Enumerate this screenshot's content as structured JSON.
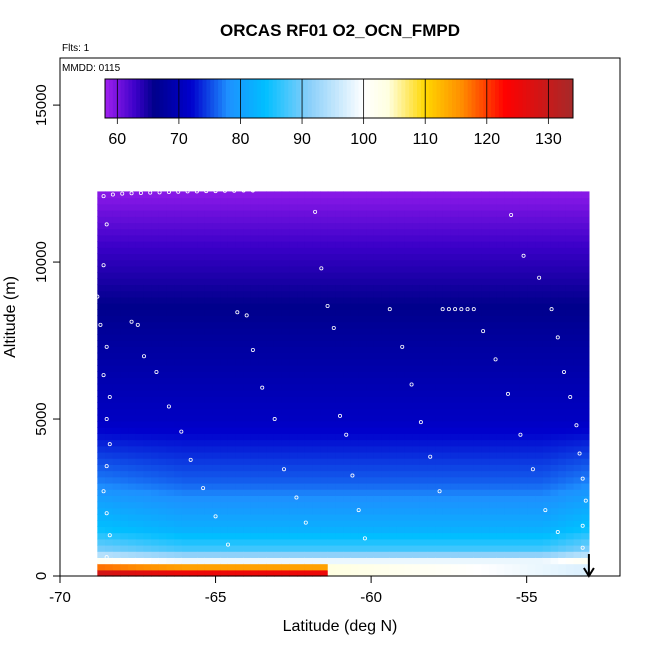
{
  "chart_data": {
    "type": "heatmap",
    "title": "ORCAS RF01 O2_OCN_FMPD",
    "xlabel": "Latitude (deg N)",
    "ylabel": "Altitude (m)",
    "flts_label": "Flts: 1",
    "mmdd_label": "MMDD: 0115",
    "xlim": [
      -70,
      -52
    ],
    "ylim": [
      0,
      16500
    ],
    "x_ticks": [
      {
        "value": -70,
        "label": "-70"
      },
      {
        "value": -65,
        "label": "-65"
      },
      {
        "value": -60,
        "label": "-60"
      },
      {
        "value": -55,
        "label": "-55"
      }
    ],
    "y_ticks": [
      {
        "value": 0,
        "label": "0"
      },
      {
        "value": 5000,
        "label": "5000"
      },
      {
        "value": 10000,
        "label": "10000"
      },
      {
        "value": 15000,
        "label": "15000"
      }
    ],
    "colorbar": {
      "range": [
        58,
        134
      ],
      "ticks": [
        {
          "value": 60,
          "label": "60"
        },
        {
          "value": 70,
          "label": "70"
        },
        {
          "value": 80,
          "label": "80"
        },
        {
          "value": 90,
          "label": "90"
        },
        {
          "value": 100,
          "label": "100"
        },
        {
          "value": 110,
          "label": "110"
        },
        {
          "value": 120,
          "label": "120"
        },
        {
          "value": 130,
          "label": "130"
        }
      ],
      "stops": [
        {
          "value": 58,
          "color": "#a020f0"
        },
        {
          "value": 63,
          "color": "#3a00c8"
        },
        {
          "value": 66,
          "color": "#00008b"
        },
        {
          "value": 72,
          "color": "#0000cd"
        },
        {
          "value": 78,
          "color": "#1e90ff"
        },
        {
          "value": 84,
          "color": "#00bfff"
        },
        {
          "value": 91,
          "color": "#87cefa"
        },
        {
          "value": 100,
          "color": "#ffffff"
        },
        {
          "value": 104,
          "color": "#ffffe0"
        },
        {
          "value": 110,
          "color": "#ffd700"
        },
        {
          "value": 116,
          "color": "#ff8c00"
        },
        {
          "value": 123,
          "color": "#ff0000"
        },
        {
          "value": 134,
          "color": "#a52a2a"
        }
      ]
    },
    "field_extent": {
      "lat_min": -68.8,
      "lat_max": -53.0,
      "alt_min": 0,
      "alt_max": 12250
    },
    "profile_model": {
      "description": "O2_OCN_FMPD value vs altitude; low near top, high near surface",
      "altitude_values": [
        {
          "alt": 0,
          "value": 130
        },
        {
          "alt": 250,
          "value": 118
        },
        {
          "alt": 500,
          "value": 98
        },
        {
          "alt": 800,
          "value": 88
        },
        {
          "alt": 1500,
          "value": 82
        },
        {
          "alt": 3000,
          "value": 76
        },
        {
          "alt": 5000,
          "value": 71
        },
        {
          "alt": 8000,
          "value": 67
        },
        {
          "alt": 10500,
          "value": 63
        },
        {
          "alt": 12250,
          "value": 59
        }
      ]
    },
    "flight_track_note": "Aircraft profile track drawn as small white open circles",
    "arrow": {
      "lat": -53.0,
      "alt_top": 700,
      "alt_bottom": 0,
      "direction": "down"
    },
    "track_points": [
      [
        -68.6,
        12100
      ],
      [
        -68.3,
        12150
      ],
      [
        -68.0,
        12180
      ],
      [
        -67.7,
        12190
      ],
      [
        -67.4,
        12200
      ],
      [
        -67.1,
        12210
      ],
      [
        -66.8,
        12220
      ],
      [
        -66.5,
        12230
      ],
      [
        -66.2,
        12240
      ],
      [
        -65.9,
        12250
      ],
      [
        -65.6,
        12250
      ],
      [
        -65.3,
        12260
      ],
      [
        -65.0,
        12260
      ],
      [
        -64.7,
        12270
      ],
      [
        -64.4,
        12270
      ],
      [
        -64.1,
        12280
      ],
      [
        -63.8,
        12280
      ],
      [
        -60.8,
        12400
      ],
      [
        -60.5,
        12410
      ],
      [
        -60.2,
        12420
      ],
      [
        -59.9,
        12420
      ],
      [
        -59.6,
        12430
      ],
      [
        -59.3,
        12430
      ],
      [
        -59.0,
        12440
      ],
      [
        -58.7,
        12440
      ],
      [
        -58.4,
        12450
      ],
      [
        -58.1,
        12450
      ],
      [
        -57.8,
        12460
      ],
      [
        -57.5,
        12460
      ],
      [
        -57.2,
        12470
      ],
      [
        -56.9,
        12470
      ],
      [
        -56.6,
        12480
      ],
      [
        -68.5,
        11200
      ],
      [
        -68.6,
        9900
      ],
      [
        -68.8,
        8900
      ],
      [
        -68.7,
        8000
      ],
      [
        -68.5,
        7300
      ],
      [
        -68.6,
        6400
      ],
      [
        -68.4,
        5700
      ],
      [
        -68.5,
        5000
      ],
      [
        -68.4,
        4200
      ],
      [
        -68.5,
        3500
      ],
      [
        -68.6,
        2700
      ],
      [
        -68.5,
        2000
      ],
      [
        -68.4,
        1300
      ],
      [
        -68.5,
        600
      ],
      [
        -67.7,
        8100
      ],
      [
        -67.5,
        8000
      ],
      [
        -67.3,
        7000
      ],
      [
        -66.9,
        6500
      ],
      [
        -66.5,
        5400
      ],
      [
        -66.1,
        4600
      ],
      [
        -65.8,
        3700
      ],
      [
        -65.4,
        2800
      ],
      [
        -65.0,
        1900
      ],
      [
        -64.6,
        1000
      ],
      [
        -64.3,
        8400
      ],
      [
        -64.0,
        8300
      ],
      [
        -63.8,
        7200
      ],
      [
        -63.5,
        6000
      ],
      [
        -63.1,
        5000
      ],
      [
        -62.8,
        3400
      ],
      [
        -62.4,
        2500
      ],
      [
        -62.1,
        1700
      ],
      [
        -61.8,
        11600
      ],
      [
        -61.6,
        9800
      ],
      [
        -61.4,
        8600
      ],
      [
        -61.2,
        7900
      ],
      [
        -61.0,
        5100
      ],
      [
        -60.8,
        4500
      ],
      [
        -60.6,
        3200
      ],
      [
        -60.4,
        2100
      ],
      [
        -60.2,
        1200
      ],
      [
        -59.4,
        8500
      ],
      [
        -59.0,
        7300
      ],
      [
        -58.7,
        6100
      ],
      [
        -58.4,
        4900
      ],
      [
        -58.1,
        3800
      ],
      [
        -57.8,
        2700
      ],
      [
        -57.7,
        8500
      ],
      [
        -57.5,
        8500
      ],
      [
        -57.3,
        8500
      ],
      [
        -57.1,
        8500
      ],
      [
        -56.9,
        8500
      ],
      [
        -56.7,
        8500
      ],
      [
        -56.4,
        7800
      ],
      [
        -56.0,
        6900
      ],
      [
        -55.6,
        5800
      ],
      [
        -55.2,
        4500
      ],
      [
        -54.8,
        3400
      ],
      [
        -54.4,
        2100
      ],
      [
        -54.0,
        1400
      ],
      [
        -55.5,
        11500
      ],
      [
        -55.1,
        10200
      ],
      [
        -54.6,
        9500
      ],
      [
        -54.2,
        8500
      ],
      [
        -54.0,
        7600
      ],
      [
        -53.8,
        6500
      ],
      [
        -53.6,
        5700
      ],
      [
        -53.4,
        4800
      ],
      [
        -53.3,
        3900
      ],
      [
        -53.2,
        3100
      ],
      [
        -53.1,
        2400
      ],
      [
        -53.2,
        1600
      ],
      [
        -53.2,
        900
      ]
    ]
  }
}
